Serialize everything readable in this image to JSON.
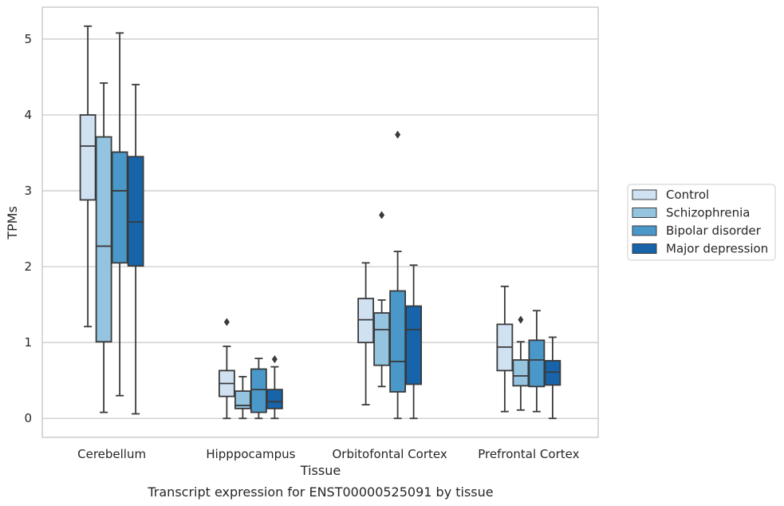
{
  "chart_data": {
    "type": "boxplot",
    "caption": "Transcript expression for ENST00000525091 by tissue",
    "xlabel": "Tissue",
    "ylabel": "TPMs",
    "ylim": [
      -0.25,
      5.42
    ],
    "yticks": [
      0,
      1,
      2,
      3,
      4,
      5
    ],
    "grid": "horizontal",
    "legend_position": "right",
    "categories": [
      "Cerebellum",
      "Hipppocampus",
      "Orbitofontal Cortex",
      "Prefrontal Cortex"
    ],
    "series": [
      {
        "name": "Control",
        "color": "#d0e1f2",
        "boxes": [
          {
            "whislo": 1.21,
            "q1": 2.88,
            "med": 3.59,
            "q3": 4.0,
            "whishi": 5.17,
            "fliers": []
          },
          {
            "whislo": 0.0,
            "q1": 0.29,
            "med": 0.46,
            "q3": 0.63,
            "whishi": 0.95,
            "fliers": [
              1.27
            ]
          },
          {
            "whislo": 0.18,
            "q1": 1.0,
            "med": 1.3,
            "q3": 1.58,
            "whishi": 2.05,
            "fliers": []
          },
          {
            "whislo": 0.09,
            "q1": 0.63,
            "med": 0.94,
            "q3": 1.24,
            "whishi": 1.74,
            "fliers": []
          }
        ]
      },
      {
        "name": "Schizophrenia",
        "color": "#94c4df",
        "boxes": [
          {
            "whislo": 0.08,
            "q1": 1.01,
            "med": 2.27,
            "q3": 3.71,
            "whishi": 4.42,
            "fliers": []
          },
          {
            "whislo": 0.0,
            "q1": 0.13,
            "med": 0.17,
            "q3": 0.36,
            "whishi": 0.55,
            "fliers": []
          },
          {
            "whislo": 0.42,
            "q1": 0.7,
            "med": 1.17,
            "q3": 1.39,
            "whishi": 1.56,
            "fliers": [
              2.68
            ]
          },
          {
            "whislo": 0.11,
            "q1": 0.43,
            "med": 0.56,
            "q3": 0.77,
            "whishi": 1.01,
            "fliers": [
              1.3
            ]
          }
        ]
      },
      {
        "name": "Bipolar disorder",
        "color": "#4a98c9",
        "boxes": [
          {
            "whislo": 0.3,
            "q1": 2.05,
            "med": 3.0,
            "q3": 3.51,
            "whishi": 5.08,
            "fliers": []
          },
          {
            "whislo": 0.0,
            "q1": 0.08,
            "med": 0.38,
            "q3": 0.65,
            "whishi": 0.79,
            "fliers": []
          },
          {
            "whislo": 0.0,
            "q1": 0.35,
            "med": 0.75,
            "q3": 1.68,
            "whishi": 2.2,
            "fliers": [
              3.74
            ]
          },
          {
            "whislo": 0.09,
            "q1": 0.42,
            "med": 0.77,
            "q3": 1.03,
            "whishi": 1.42,
            "fliers": []
          }
        ]
      },
      {
        "name": "Major depression",
        "color": "#1764ab",
        "boxes": [
          {
            "whislo": 0.06,
            "q1": 2.01,
            "med": 2.59,
            "q3": 3.45,
            "whishi": 4.4,
            "fliers": []
          },
          {
            "whislo": 0.0,
            "q1": 0.13,
            "med": 0.22,
            "q3": 0.38,
            "whishi": 0.68,
            "fliers": [
              0.78
            ]
          },
          {
            "whislo": 0.0,
            "q1": 0.45,
            "med": 1.17,
            "q3": 1.48,
            "whishi": 2.02,
            "fliers": []
          },
          {
            "whislo": 0.0,
            "q1": 0.44,
            "med": 0.61,
            "q3": 0.76,
            "whishi": 1.07,
            "fliers": []
          }
        ]
      }
    ]
  },
  "style": {
    "grid_color": "#cccccc",
    "frame_color": "#cccccc",
    "line_color": "#3a3a3a"
  }
}
